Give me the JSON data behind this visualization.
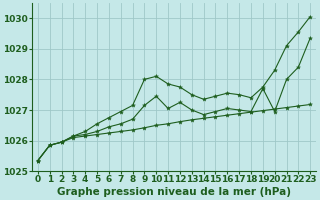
{
  "background_color": "#c5e8e8",
  "grid_color": "#9fc8c8",
  "line_color": "#1e5e1e",
  "xlabel": "Graphe pression niveau de la mer (hPa)",
  "xlabel_fontsize": 7.5,
  "tick_fontsize": 6.5,
  "xlim": [
    -0.5,
    23.5
  ],
  "ylim": [
    1025.0,
    1030.5
  ],
  "yticks": [
    1025,
    1026,
    1027,
    1028,
    1029,
    1030
  ],
  "xticks": [
    0,
    1,
    2,
    3,
    4,
    5,
    6,
    7,
    8,
    9,
    10,
    11,
    12,
    13,
    14,
    15,
    16,
    17,
    18,
    19,
    20,
    21,
    22,
    23
  ],
  "series_upper": [
    1025.35,
    1025.85,
    1025.95,
    1026.15,
    1026.3,
    1026.55,
    1026.75,
    1026.95,
    1027.15,
    1028.0,
    1028.1,
    1027.85,
    1027.75,
    1027.5,
    1027.35,
    1027.45,
    1027.55,
    1027.5,
    1027.4,
    1027.75,
    1028.3,
    1029.1,
    1029.55,
    1030.05
  ],
  "series_mid": [
    1025.35,
    1025.85,
    1025.95,
    1026.15,
    1026.2,
    1026.3,
    1026.45,
    1026.55,
    1026.7,
    1027.15,
    1027.45,
    1027.05,
    1027.25,
    1027.0,
    1026.85,
    1026.95,
    1027.05,
    1027.0,
    1026.95,
    1027.7,
    1026.95,
    1028.0,
    1028.4,
    1029.35
  ],
  "series_lower": [
    1025.35,
    1025.85,
    1025.95,
    1026.1,
    1026.15,
    1026.2,
    1026.25,
    1026.3,
    1026.35,
    1026.42,
    1026.5,
    1026.55,
    1026.62,
    1026.68,
    1026.73,
    1026.78,
    1026.83,
    1026.88,
    1026.93,
    1026.98,
    1027.03,
    1027.08,
    1027.13,
    1027.18
  ]
}
